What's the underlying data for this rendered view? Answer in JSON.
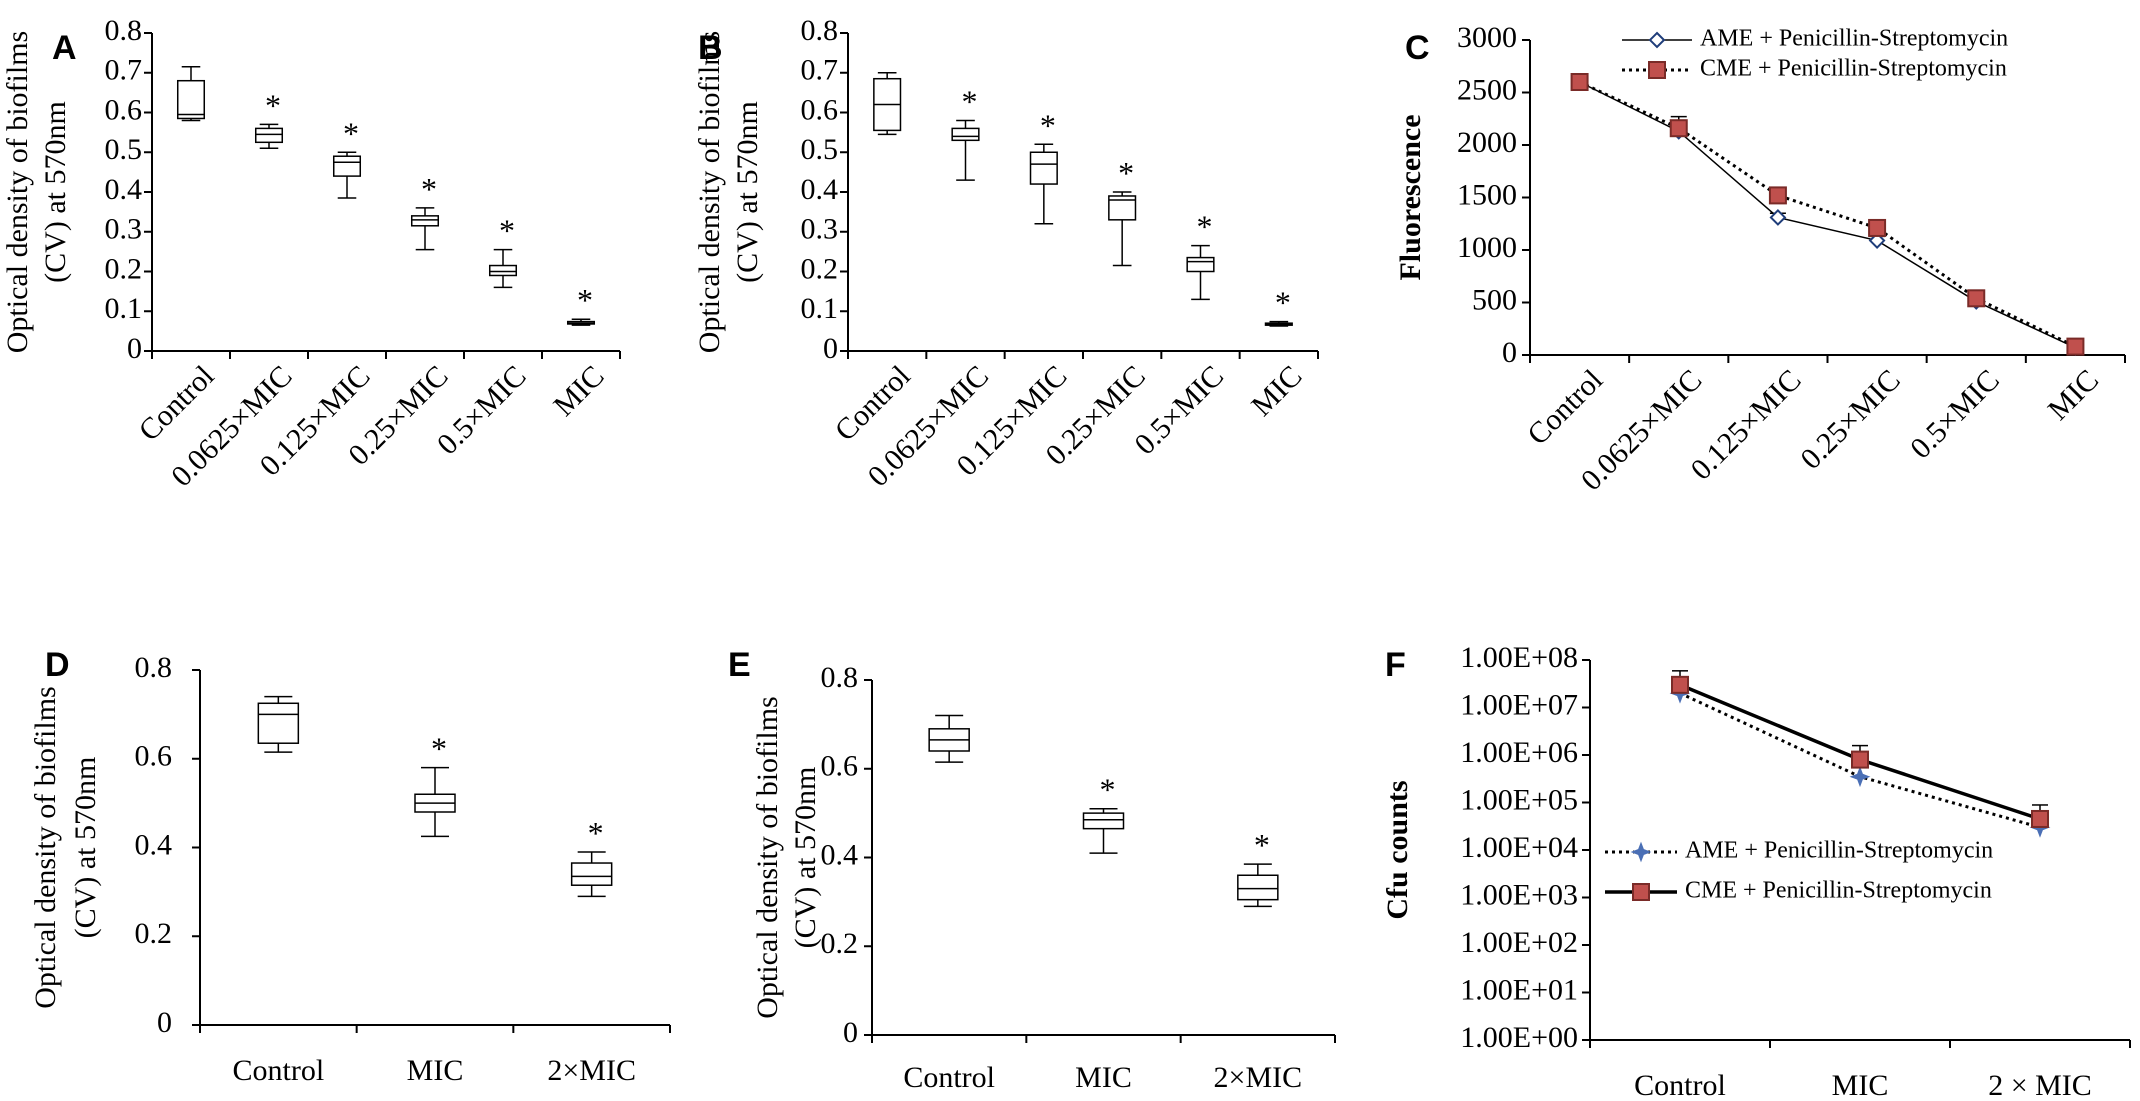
{
  "chart_data": [
    {
      "panel": "A",
      "type": "box",
      "ylabel": [
        "Optical density of biofilms",
        "(CV) at 570nm"
      ],
      "ylim": [
        0,
        0.8
      ],
      "yticks": [
        "0",
        "0.1",
        "0.2",
        "0.3",
        "0.4",
        "0.5",
        "0.6",
        "0.7",
        "0.8"
      ],
      "categories": [
        "Control",
        "0.0625×MIC",
        "0.125×MIC",
        "0.25×MIC",
        "0.5×MIC",
        "MIC"
      ],
      "boxes": [
        {
          "min": 0.58,
          "q1": 0.585,
          "median": 0.595,
          "q3": 0.68,
          "max": 0.715,
          "star": ""
        },
        {
          "min": 0.51,
          "q1": 0.525,
          "median": 0.545,
          "q3": 0.56,
          "max": 0.57,
          "star": "*"
        },
        {
          "min": 0.385,
          "q1": 0.44,
          "median": 0.475,
          "q3": 0.49,
          "max": 0.5,
          "star": "*"
        },
        {
          "min": 0.255,
          "q1": 0.315,
          "median": 0.33,
          "q3": 0.34,
          "max": 0.36,
          "star": "*"
        },
        {
          "min": 0.16,
          "q1": 0.19,
          "median": 0.2,
          "q3": 0.215,
          "max": 0.255,
          "star": "*"
        },
        {
          "min": 0.065,
          "q1": 0.068,
          "median": 0.07,
          "q3": 0.074,
          "max": 0.08,
          "star": "*"
        }
      ]
    },
    {
      "panel": "B",
      "type": "box",
      "ylabel": [
        "Optical density of biofilms",
        "(CV) at 570nm"
      ],
      "ylim": [
        0,
        0.8
      ],
      "yticks": [
        "0",
        "0.1",
        "0.2",
        "0.3",
        "0.4",
        "0.5",
        "0.6",
        "0.7",
        "0.8"
      ],
      "categories": [
        "Control",
        "0.0625×MIC",
        "0.125×MIC",
        "0.25×MIC",
        "0.5×MIC",
        "MIC"
      ],
      "boxes": [
        {
          "min": 0.545,
          "q1": 0.555,
          "median": 0.62,
          "q3": 0.685,
          "max": 0.7,
          "star": ""
        },
        {
          "min": 0.43,
          "q1": 0.53,
          "median": 0.54,
          "q3": 0.56,
          "max": 0.58,
          "star": "*"
        },
        {
          "min": 0.32,
          "q1": 0.42,
          "median": 0.47,
          "q3": 0.5,
          "max": 0.52,
          "star": "*"
        },
        {
          "min": 0.215,
          "q1": 0.33,
          "median": 0.38,
          "q3": 0.39,
          "max": 0.4,
          "star": "*"
        },
        {
          "min": 0.13,
          "q1": 0.2,
          "median": 0.225,
          "q3": 0.235,
          "max": 0.265,
          "star": "*"
        },
        {
          "min": 0.063,
          "q1": 0.066,
          "median": 0.068,
          "q3": 0.07,
          "max": 0.074,
          "star": "*"
        }
      ]
    },
    {
      "panel": "C",
      "type": "line",
      "ylabel": [
        "Fluorescence"
      ],
      "ylim": [
        0,
        3000
      ],
      "yticks": [
        "0",
        "500",
        "1000",
        "1500",
        "2000",
        "2500",
        "3000"
      ],
      "categories": [
        "Control",
        "0.0625×MIC",
        "0.125×MIC",
        "0.25×MIC",
        "0.5×MIC",
        "MIC"
      ],
      "series": [
        {
          "name": "AME + Penicillin-Streptomycin",
          "style": "solid",
          "marker": "diamond",
          "color": "#1f3d7a",
          "values": [
            2600,
            2130,
            1310,
            1090,
            510,
            70
          ],
          "errors": [
            40,
            60,
            40,
            40,
            50,
            15
          ]
        },
        {
          "name": "CME + Penicillin-Streptomycin",
          "style": "dotted",
          "marker": "square",
          "color": "#c0504d",
          "values": [
            2600,
            2160,
            1520,
            1210,
            540,
            80
          ],
          "errors": [
            40,
            110,
            70,
            70,
            70,
            20
          ]
        }
      ],
      "legend": "top-right"
    },
    {
      "panel": "D",
      "type": "box",
      "ylabel": [
        "Optical density of biofilms",
        "(CV) at 570nm"
      ],
      "ylim": [
        0,
        0.8
      ],
      "yticks": [
        "0",
        "0.2",
        "0.4",
        "0.6",
        "0.8"
      ],
      "categories": [
        "Control",
        "MIC",
        "2×MIC"
      ],
      "boxes": [
        {
          "min": 0.615,
          "q1": 0.635,
          "median": 0.7,
          "q3": 0.725,
          "max": 0.74,
          "star": ""
        },
        {
          "min": 0.425,
          "q1": 0.48,
          "median": 0.5,
          "q3": 0.52,
          "max": 0.58,
          "star": "*"
        },
        {
          "min": 0.29,
          "q1": 0.315,
          "median": 0.335,
          "q3": 0.365,
          "max": 0.39,
          "star": "*"
        }
      ]
    },
    {
      "panel": "E",
      "type": "box",
      "ylabel": [
        "Optical density of biofilms",
        "(CV) at 570nm"
      ],
      "ylim": [
        0,
        0.8
      ],
      "yticks": [
        "0",
        "0.2",
        "0.4",
        "0.6",
        "0.8"
      ],
      "categories": [
        "Control",
        "MIC",
        "2×MIC"
      ],
      "boxes": [
        {
          "min": 0.615,
          "q1": 0.64,
          "median": 0.665,
          "q3": 0.69,
          "max": 0.72,
          "star": ""
        },
        {
          "min": 0.41,
          "q1": 0.465,
          "median": 0.485,
          "q3": 0.5,
          "max": 0.51,
          "star": "*"
        },
        {
          "min": 0.29,
          "q1": 0.305,
          "median": 0.33,
          "q3": 0.36,
          "max": 0.385,
          "star": "*"
        }
      ]
    },
    {
      "panel": "F",
      "type": "line",
      "yscale": "log",
      "ylabel": [
        "Cfu counts"
      ],
      "ylim": [
        1,
        100000000
      ],
      "yticks": [
        "1.00E+00",
        "1.00E+01",
        "1.00E+02",
        "1.00E+03",
        "1.00E+04",
        "1.00E+05",
        "1.00E+06",
        "1.00E+07",
        "1.00E+08"
      ],
      "categories": [
        "Control",
        "MIC",
        "2 × MIC"
      ],
      "series": [
        {
          "name": "AME + Penicillin-Streptomycin",
          "style": "dotted",
          "marker": "star",
          "color": "#4a6fb5",
          "values": [
            20000000,
            350000,
            30000
          ]
        },
        {
          "name": "CME + Penicillin-Streptomycin",
          "style": "solid",
          "marker": "square",
          "color": "#c0504d",
          "values": [
            30000000,
            800000,
            45000
          ]
        }
      ],
      "legend": "middle-right"
    }
  ]
}
